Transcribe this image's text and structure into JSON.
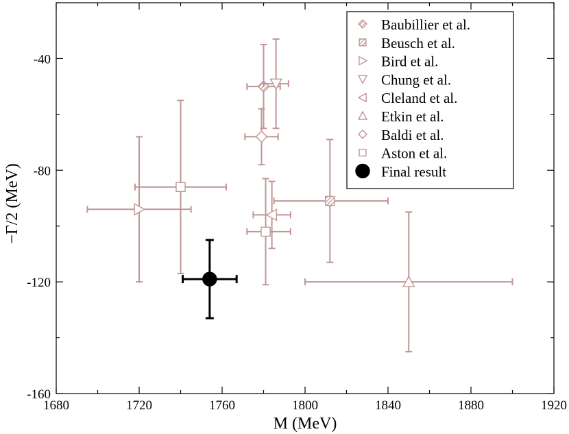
{
  "chart_data": {
    "type": "scatter",
    "title": "",
    "xlabel": "M (MeV)",
    "ylabel": "−Γ/2 (MeV)",
    "xlim": [
      1680,
      1920
    ],
    "ylim": [
      -160,
      -20
    ],
    "xticks": [
      1680,
      1720,
      1760,
      1800,
      1840,
      1880,
      1920
    ],
    "yticks": [
      -160,
      -120,
      -80,
      -40
    ],
    "xtick_labels": [
      "1680",
      "1720",
      "1760",
      "1800",
      "1840",
      "1880",
      "1920"
    ],
    "ytick_labels": [
      "-160",
      "-120",
      "-80",
      "-40"
    ],
    "grid": false,
    "legend_position": "top-right",
    "colors": {
      "experiment": "#bf9693",
      "final": "#000000"
    },
    "series": [
      {
        "name": "Baubillier et al.",
        "marker": "diamond-hatched",
        "color": "#bf9693",
        "points": [
          {
            "x": 1780,
            "y": -50,
            "xerr": [
              8,
              8
            ],
            "yerr": [
              15,
              15
            ]
          }
        ]
      },
      {
        "name": "Beusch et al.",
        "marker": "square-hatched",
        "color": "#bf9693",
        "points": [
          {
            "x": 1812,
            "y": -91,
            "xerr": [
              27,
              28
            ],
            "yerr": [
              22,
              22
            ]
          }
        ]
      },
      {
        "name": "Bird et al.",
        "marker": "triangle-right",
        "color": "#bf9693",
        "points": [
          {
            "x": 1720,
            "y": -94,
            "xerr": [
              25,
              25
            ],
            "yerr": [
              26,
              26
            ]
          }
        ]
      },
      {
        "name": "Chung et al.",
        "marker": "triangle-down",
        "color": "#bf9693",
        "points": [
          {
            "x": 1786,
            "y": -49,
            "xerr": [
              6,
              6
            ],
            "yerr": [
              16,
              16
            ]
          }
        ]
      },
      {
        "name": "Cleland et al.",
        "marker": "triangle-left",
        "color": "#bf9693",
        "points": [
          {
            "x": 1784,
            "y": -96,
            "xerr": [
              9,
              9
            ],
            "yerr": [
              12,
              12
            ]
          }
        ]
      },
      {
        "name": "Etkin et al.",
        "marker": "triangle-up",
        "color": "#bf9693",
        "points": [
          {
            "x": 1850,
            "y": -120,
            "xerr": [
              50,
              50
            ],
            "yerr": [
              25,
              25
            ]
          }
        ]
      },
      {
        "name": "Baldi et al.",
        "marker": "diamond",
        "color": "#bf9693",
        "points": [
          {
            "x": 1779,
            "y": -68,
            "xerr": [
              8,
              8
            ],
            "yerr": [
              10,
              10
            ]
          }
        ]
      },
      {
        "name": "Aston et al.",
        "marker": "square",
        "color": "#bf9693",
        "points": [
          {
            "x": 1740,
            "y": -86,
            "xerr": [
              22,
              22
            ],
            "yerr": [
              31,
              31
            ]
          },
          {
            "x": 1781,
            "y": -102,
            "xerr": [
              9,
              12
            ],
            "yerr": [
              19,
              19
            ]
          }
        ]
      },
      {
        "name": "Final result",
        "marker": "circle-filled",
        "color": "#000000",
        "points": [
          {
            "x": 1754,
            "y": -119,
            "xerr": [
              13,
              13
            ],
            "yerr": [
              14,
              14
            ]
          }
        ]
      }
    ]
  }
}
